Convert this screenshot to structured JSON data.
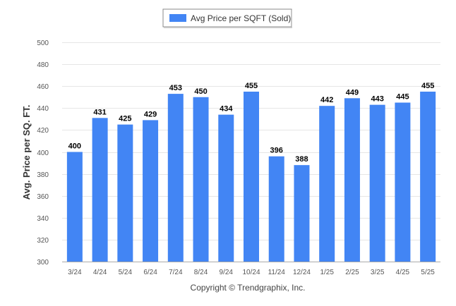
{
  "chart_data": {
    "type": "bar",
    "categories": [
      "3/24",
      "4/24",
      "5/24",
      "6/24",
      "7/24",
      "8/24",
      "9/24",
      "10/24",
      "11/24",
      "12/24",
      "1/25",
      "2/25",
      "3/25",
      "4/25",
      "5/25"
    ],
    "series": [
      {
        "name": "Avg Price per SQFT (Sold)",
        "values": [
          400,
          431,
          425,
          429,
          453,
          450,
          434,
          455,
          396,
          388,
          442,
          449,
          443,
          445,
          455
        ],
        "color": "#4285f4"
      }
    ],
    "title": "",
    "xlabel": "",
    "ylabel": "Avg. Price per SQ. FT.",
    "ylim": [
      300,
      500
    ],
    "yticks": [
      300,
      320,
      340,
      360,
      380,
      400,
      420,
      440,
      460,
      480,
      500
    ],
    "grid": true,
    "legend_position": "top-center"
  },
  "credit": "Copyright © Trendgraphix, Inc."
}
